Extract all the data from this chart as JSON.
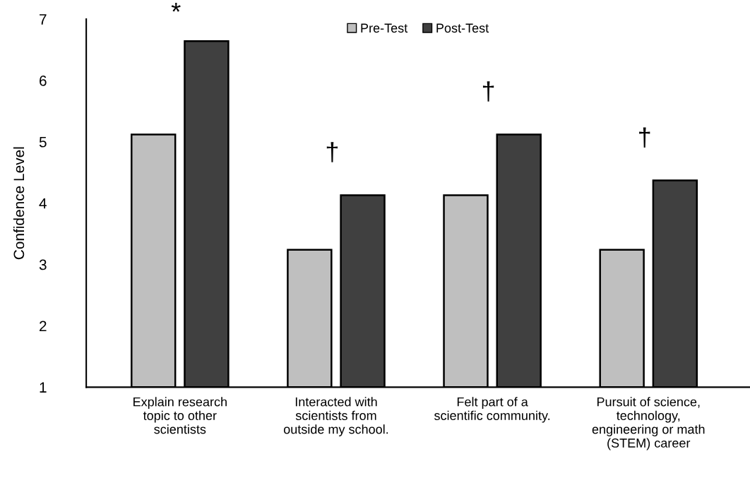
{
  "chart_data": {
    "type": "bar",
    "ylabel": "Confidence Level",
    "categories": [
      "Explain research\ntopic to other\nscientists",
      "Interacted with\nscientists from\noutside my school.",
      "Felt part of a\nscientific community.",
      "Pursuit of science,\ntechnology,\nengineering or math\n(STEM) career"
    ],
    "series": [
      {
        "name": "Pre-Test",
        "color": "#bfbfbf",
        "values": [
          5.12,
          3.24,
          4.13,
          3.24
        ]
      },
      {
        "name": "Post-Test",
        "color": "#404040",
        "values": [
          6.64,
          4.13,
          5.12,
          4.37
        ]
      }
    ],
    "ylim": [
      1,
      7
    ],
    "yticks": [
      1,
      2,
      3,
      4,
      5,
      6,
      7
    ],
    "grid": false,
    "legend": "top",
    "annotations": [
      "*",
      "†",
      "†",
      "†"
    ]
  }
}
